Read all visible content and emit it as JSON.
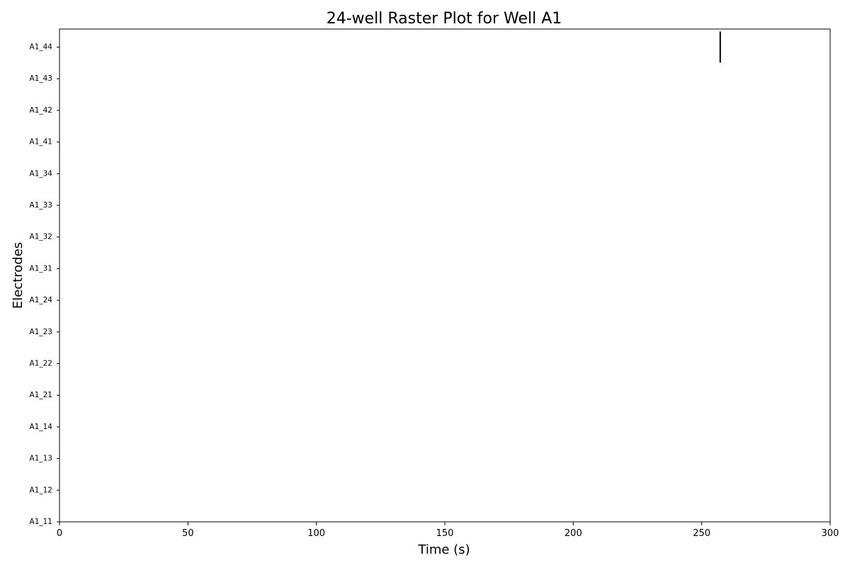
{
  "chart_data": {
    "type": "raster",
    "title": "24-well Raster Plot for Well A1",
    "xlabel": "Time (s)",
    "ylabel": "Electrodes",
    "xlim": [
      0,
      300
    ],
    "xticks": [
      0,
      50,
      100,
      150,
      200,
      250,
      300
    ],
    "electrodes": [
      "A1_11",
      "A1_12",
      "A1_13",
      "A1_14",
      "A1_21",
      "A1_22",
      "A1_23",
      "A1_24",
      "A1_31",
      "A1_32",
      "A1_33",
      "A1_34",
      "A1_41",
      "A1_42",
      "A1_43",
      "A1_44"
    ],
    "spikes": [
      {
        "electrode": "A1_44",
        "time": 257.2
      }
    ],
    "spike_color": "#000000",
    "grid": false,
    "legend": "none"
  }
}
